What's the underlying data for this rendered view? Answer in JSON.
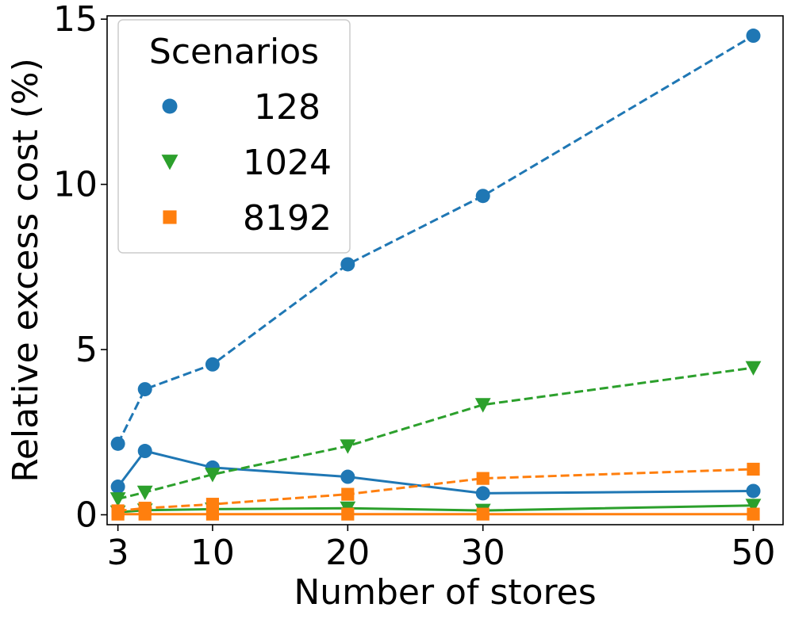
{
  "chart_data": {
    "type": "line",
    "xlabel": "Number of stores",
    "ylabel": "Relative excess cost (%)",
    "xlim": [
      2.2,
      52.2
    ],
    "ylim": [
      -0.3,
      15.1
    ],
    "x_ticks": [
      3,
      10,
      20,
      30,
      50
    ],
    "y_ticks": [
      0,
      5,
      10,
      15
    ],
    "x_tick_labels": [
      "3",
      "10",
      "20",
      "30",
      "50"
    ],
    "y_tick_labels": [
      "0",
      "5",
      "10",
      "15"
    ],
    "x": [
      3,
      5,
      10,
      20,
      30,
      50
    ],
    "legend": {
      "title": "Scenarios",
      "position": "top-left"
    },
    "series": [
      {
        "name": "128",
        "color": "#1f77b4",
        "marker": "circle",
        "linestyle": "dashed",
        "values": [
          2.15,
          3.8,
          4.55,
          7.58,
          9.65,
          14.5
        ]
      },
      {
        "color": "#1f77b4",
        "marker": "circle",
        "linestyle": "solid",
        "values": [
          0.85,
          1.93,
          1.43,
          1.15,
          0.65,
          0.72
        ]
      },
      {
        "name": "1024",
        "color": "#2ca02c",
        "marker": "triangle-down",
        "linestyle": "dashed",
        "values": [
          0.48,
          0.68,
          1.22,
          2.08,
          3.33,
          4.45
        ]
      },
      {
        "color": "#2ca02c",
        "marker": "triangle-down",
        "linestyle": "solid",
        "values": [
          0.08,
          0.14,
          0.17,
          0.2,
          0.13,
          0.28
        ]
      },
      {
        "name": "8192",
        "color": "#ff7f0e",
        "marker": "square",
        "linestyle": "dashed",
        "values": [
          0.12,
          0.2,
          0.32,
          0.62,
          1.1,
          1.38
        ]
      },
      {
        "color": "#ff7f0e",
        "marker": "square",
        "linestyle": "solid",
        "values": [
          0.02,
          0.02,
          0.02,
          0.02,
          0.02,
          0.02
        ]
      }
    ]
  }
}
